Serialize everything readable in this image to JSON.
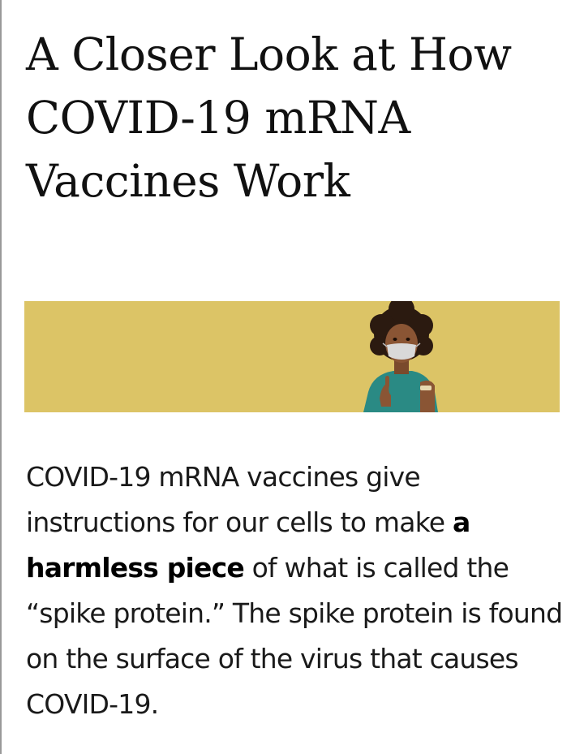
{
  "article": {
    "title": "A Closer Look at How COVID-19 mRNA Vaccines Work",
    "intro": {
      "before_bold": "COVID-19 mRNA vaccines give instructions for our cells to make ",
      "bold": "a harmless piece",
      "after_bold": " of what is called the “spike protein.” The spike protein is found on the surface of the virus that causes COVID-19."
    }
  },
  "banner": {
    "background": "#dcc466",
    "illustration": "masked-person-vaccinated-icon"
  }
}
